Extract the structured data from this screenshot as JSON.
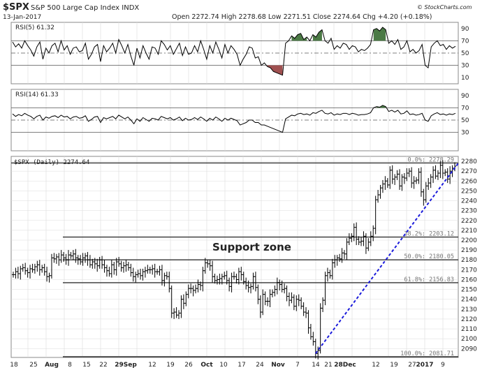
{
  "header": {
    "symbol": "$SPX",
    "name": "S&P 500 Large Cap Index INDX",
    "date": "13-Jan-2017",
    "quote": "Open 2272.74  High 2278.68  Low 2271.51  Close 2274.64  Chg +4.20 (+0.18%)",
    "quote_arrow": "▲",
    "watermark": "© StockCharts.com"
  },
  "colors": {
    "bar": "#000000",
    "trendline": "#1a1adb",
    "rsi_overbought_fill": "#4b7a45",
    "rsi_oversold_fill": "#a05050",
    "grid": "#dcdcdc"
  },
  "chart_data": [
    {
      "type": "line",
      "title": "RSI(5) 61.32",
      "ylim": [
        0,
        100
      ],
      "yticks": [
        10,
        30,
        50,
        70,
        90
      ],
      "reference_lines": [
        30,
        50,
        70
      ],
      "values": [
        68,
        60,
        65,
        58,
        70,
        62,
        55,
        45,
        60,
        68,
        40,
        58,
        50,
        62,
        66,
        52,
        70,
        55,
        62,
        48,
        58,
        60,
        52,
        54,
        66,
        40,
        48,
        60,
        64,
        36,
        62,
        52,
        58,
        66,
        50,
        72,
        62,
        50,
        64,
        45,
        30,
        58,
        42,
        62,
        50,
        40,
        60,
        58,
        48,
        70,
        64,
        55,
        62,
        48,
        57,
        66,
        46,
        60,
        48,
        50,
        62,
        52,
        70,
        56,
        40,
        62,
        50,
        68,
        56,
        42,
        64,
        50,
        62,
        56,
        48,
        30,
        40,
        48,
        60,
        58,
        42,
        44,
        30,
        34,
        28,
        26,
        20,
        18,
        16,
        14,
        66,
        70,
        78,
        74,
        80,
        82,
        72,
        76,
        70,
        80,
        76,
        84,
        88,
        70,
        66,
        74,
        56,
        62,
        58,
        66,
        64,
        56,
        62,
        60,
        52,
        56,
        54,
        58,
        64,
        88,
        90,
        86,
        92,
        88,
        66,
        70,
        64,
        72,
        56,
        60,
        70,
        52,
        56,
        50,
        54,
        64,
        30,
        26,
        60,
        66,
        70,
        62,
        64,
        56,
        62,
        58,
        61
      ]
    },
    {
      "type": "line",
      "title": "RSI(14) 61.33",
      "ylim": [
        0,
        100
      ],
      "yticks": [
        30,
        50,
        70,
        90
      ],
      "reference_lines": [
        30,
        50,
        70
      ],
      "values": [
        60,
        56,
        59,
        57,
        61,
        58,
        56,
        52,
        56,
        58,
        50,
        55,
        53,
        56,
        57,
        54,
        58,
        55,
        56,
        52,
        55,
        56,
        53,
        54,
        57,
        48,
        51,
        55,
        56,
        46,
        54,
        52,
        54,
        56,
        52,
        58,
        55,
        52,
        55,
        50,
        44,
        52,
        48,
        54,
        51,
        48,
        53,
        52,
        50,
        56,
        54,
        52,
        54,
        50,
        52,
        55,
        49,
        53,
        50,
        51,
        54,
        51,
        55,
        52,
        48,
        53,
        50,
        55,
        52,
        48,
        53,
        50,
        53,
        51,
        49,
        42,
        44,
        46,
        50,
        50,
        46,
        46,
        42,
        42,
        40,
        38,
        36,
        34,
        32,
        30,
        52,
        55,
        58,
        57,
        60,
        61,
        59,
        60,
        58,
        62,
        61,
        64,
        66,
        61,
        60,
        62,
        58,
        60,
        59,
        61,
        61,
        59,
        61,
        60,
        58,
        59,
        59,
        60,
        62,
        70,
        72,
        71,
        74,
        72,
        64,
        66,
        63,
        66,
        60,
        61,
        65,
        59,
        60,
        58,
        59,
        61,
        50,
        48,
        57,
        60,
        62,
        59,
        60,
        58,
        60,
        59,
        61
      ]
    },
    {
      "type": "bar",
      "title": "$SPX (Daily) 2274.64",
      "ylim": [
        2081,
        2285
      ],
      "yticks": [
        2090,
        2100,
        2110,
        2120,
        2130,
        2140,
        2150,
        2160,
        2170,
        2180,
        2190,
        2200,
        2210,
        2220,
        2230,
        2240,
        2250,
        2260,
        2270,
        2280
      ],
      "closes": [
        2165,
        2168,
        2166,
        2171,
        2172,
        2169,
        2167,
        2171,
        2170,
        2173,
        2175,
        2170,
        2172,
        2168,
        2163,
        2164,
        2182,
        2181,
        2183,
        2180,
        2185,
        2182,
        2180,
        2185,
        2184,
        2186,
        2182,
        2181,
        2178,
        2182,
        2184,
        2180,
        2175,
        2178,
        2176,
        2174,
        2180,
        2175,
        2172,
        2169,
        2166,
        2175,
        2170,
        2178,
        2176,
        2172,
        2174,
        2175,
        2172,
        2167,
        2163,
        2165,
        2166,
        2164,
        2168,
        2169,
        2170,
        2170,
        2171,
        2168,
        2168,
        2170,
        2159,
        2164,
        2163,
        2151,
        2126,
        2127,
        2124,
        2126,
        2140,
        2136,
        2145,
        2151,
        2151,
        2149,
        2151,
        2155,
        2154,
        2169,
        2177,
        2176,
        2174,
        2163,
        2159,
        2160,
        2161,
        2163,
        2164,
        2159,
        2153,
        2163,
        2163,
        2160,
        2168,
        2165,
        2158,
        2154,
        2152,
        2153,
        2163,
        2152,
        2140,
        2127,
        2145,
        2138,
        2138,
        2145,
        2147,
        2150,
        2157,
        2155,
        2150,
        2151,
        2143,
        2139,
        2142,
        2133,
        2140,
        2139,
        2133,
        2127,
        2126,
        2111,
        2102,
        2097,
        2085,
        2088,
        2131,
        2139,
        2164,
        2167,
        2164,
        2177,
        2180,
        2182,
        2181,
        2187,
        2186,
        2198,
        2202,
        2204,
        2213,
        2201,
        2198,
        2199,
        2204,
        2192,
        2198,
        2204,
        2212,
        2241,
        2246,
        2253,
        2257,
        2260,
        2256,
        2271,
        2262,
        2264,
        2267,
        2255,
        2264,
        2263,
        2268,
        2270,
        2258,
        2260,
        2261,
        2269,
        2249,
        2241,
        2255,
        2258,
        2264,
        2271,
        2265,
        2268,
        2276,
        2268,
        2269,
        2262,
        2270,
        2273,
        2275
      ],
      "fib_levels": [
        {
          "label": "0.0%: 2278.29",
          "value": 2278.29
        },
        {
          "label": "38.2%: 2203.12",
          "value": 2203.12
        },
        {
          "label": "50.0%: 2180.05",
          "value": 2180.05
        },
        {
          "label": "61.8%: 2156.83",
          "value": 2156.83
        },
        {
          "label": "100.0%: 2081.71",
          "value": 2081.71
        }
      ],
      "annotation": "Support zone",
      "trendline": {
        "from": [
          2085,
          "start"
        ],
        "to": [
          2278,
          "end"
        ]
      },
      "xticks": [
        "18",
        "25",
        "Aug",
        "8",
        "15",
        "22",
        "29Sep",
        "12",
        "19",
        "26",
        "Oct",
        "10",
        "17",
        "24",
        "Nov",
        "7",
        "14",
        "21",
        "28Dec",
        "12",
        "19",
        "27",
        "2017",
        "9"
      ]
    }
  ]
}
